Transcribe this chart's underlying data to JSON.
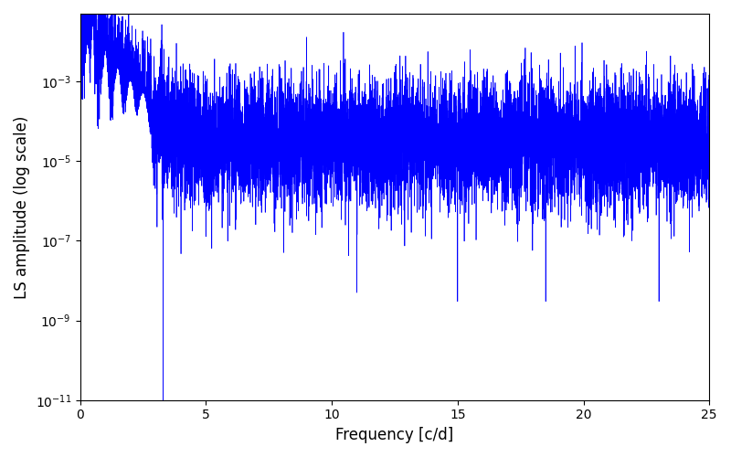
{
  "xlabel": "Frequency [c/d]",
  "ylabel": "LS amplitude (log scale)",
  "xlim": [
    0,
    25
  ],
  "ylim": [
    1e-11,
    0.05
  ],
  "line_color": "#0000FF",
  "line_width": 0.5,
  "background_color": "#ffffff",
  "figsize": [
    8.0,
    5.0
  ],
  "dpi": 100,
  "seed": 12345,
  "n_points": 10000,
  "freq_max": 25.0
}
